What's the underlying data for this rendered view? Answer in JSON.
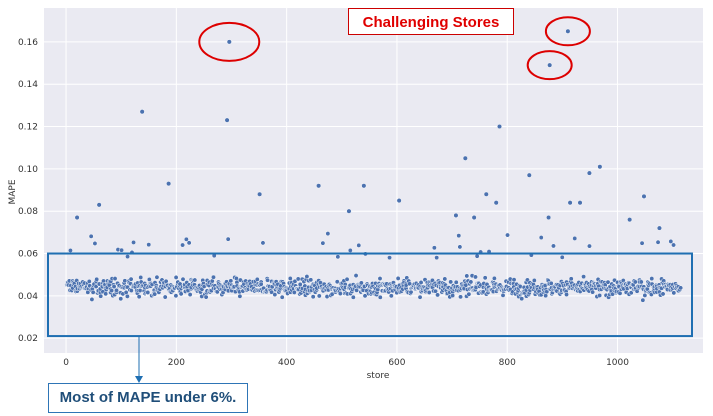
{
  "chart_data": {
    "type": "scatter",
    "title": "",
    "xlabel": "store",
    "ylabel": "MAPE",
    "xlim": [
      -40,
      1155
    ],
    "ylim": [
      0.013,
      0.176
    ],
    "x_ticks": [
      0,
      200,
      400,
      600,
      800,
      1000
    ],
    "y_ticks": [
      0.02,
      0.04,
      0.06,
      0.08,
      0.1,
      0.12,
      0.14,
      0.16
    ],
    "y_tick_labels": [
      "0.02",
      "0.04",
      "0.06",
      "0.08",
      "0.10",
      "0.12",
      "0.14",
      "0.16"
    ],
    "grid": true,
    "point_color": "#4c72b0",
    "bulk_range": {
      "x": [
        1,
        1115
      ],
      "y": [
        0.025,
        0.06
      ]
    },
    "series": [
      {
        "x": [
          296,
          910,
          877,
          138,
          292,
          786,
          724,
          186,
          968,
          949,
          840,
          540,
          458,
          351,
          914,
          1048,
          932,
          604,
          60,
          20,
          513,
          707,
          740,
          762,
          780,
          875,
          1076,
          1022
        ],
        "y": [
          0.16,
          0.165,
          0.149,
          0.127,
          0.123,
          0.12,
          0.105,
          0.093,
          0.101,
          0.098,
          0.097,
          0.092,
          0.092,
          0.088,
          0.084,
          0.087,
          0.084,
          0.085,
          0.083,
          0.077,
          0.08,
          0.078,
          0.077,
          0.088,
          0.084,
          0.077,
          0.072,
          0.076
        ]
      }
    ]
  },
  "annotations": {
    "challenging": "Challenging Stores",
    "most_mape": "Most of MAPE under 6%.",
    "red_color": "#dd0000",
    "blue_color": "#1f6fb2"
  }
}
